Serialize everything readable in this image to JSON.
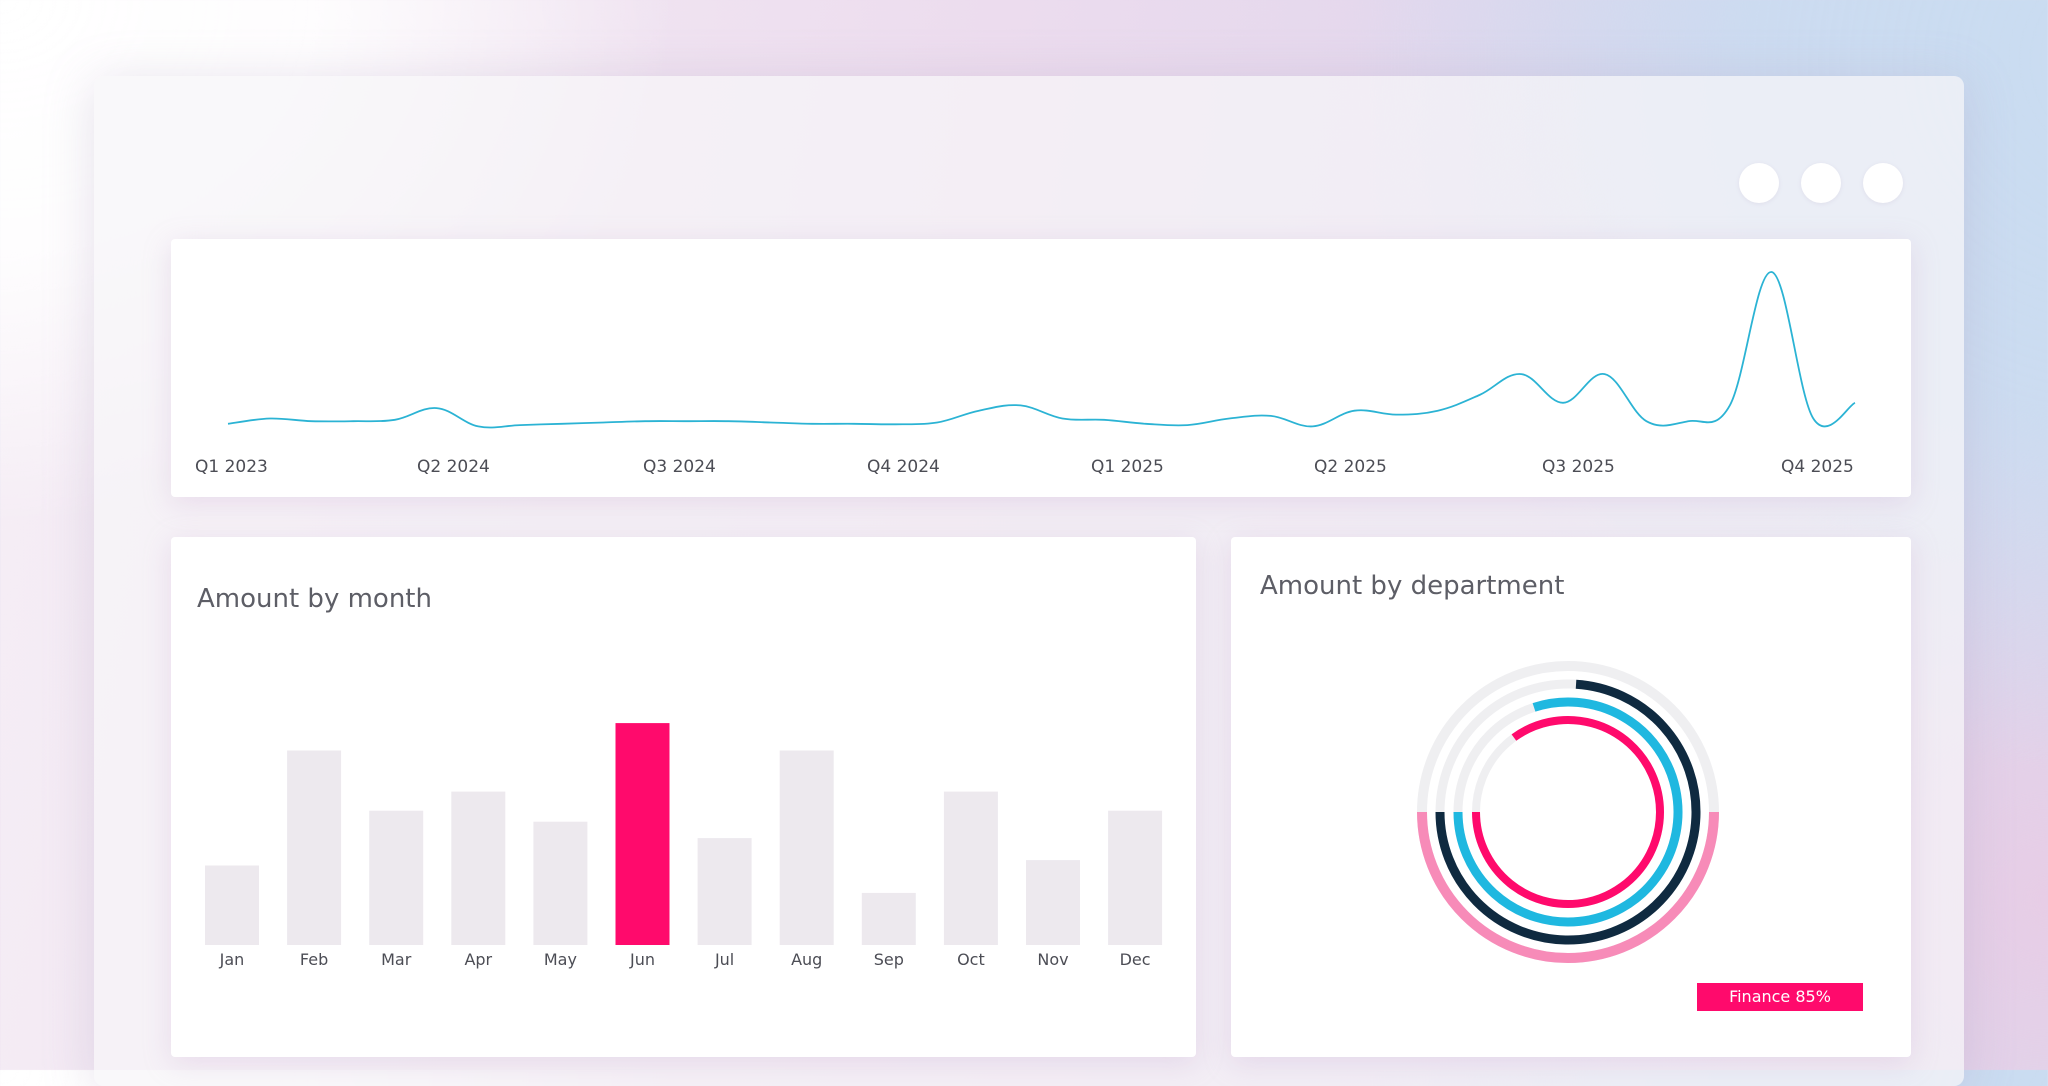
{
  "window": {
    "controls": [
      "window-control-1",
      "window-control-2",
      "window-control-3"
    ]
  },
  "colors": {
    "line": "#2bb3d4",
    "bar_default": "#ede9ee",
    "bar_highlight": "#ff0a6c",
    "ring_track": "#efeff1",
    "ring_navy": "#0f2a40",
    "ring_cyan": "#1fb8e0",
    "ring_pink_light": "#f78bb8",
    "ring_magenta": "#ff0a6c"
  },
  "trend": {
    "tick_labels": [
      "Q1 2023",
      "Q2 2024",
      "Q3 2024",
      "Q4 2024",
      "Q1 2025",
      "Q2 2025",
      "Q3 2025",
      "Q4 2025"
    ]
  },
  "month_chart": {
    "title": "Amount by month"
  },
  "department_chart": {
    "title": "Amount by department",
    "legend_label": "Finance 85%"
  },
  "chart_data": [
    {
      "type": "line",
      "title": "",
      "xlabel": "",
      "ylabel": "",
      "x_tick_labels": [
        "Q1 2023",
        "Q2 2024",
        "Q3 2024",
        "Q4 2024",
        "Q1 2025",
        "Q2 2025",
        "Q3 2025",
        "Q4 2025"
      ],
      "grid": false,
      "legend": "none",
      "series": [
        {
          "values": [
            2,
            4,
            3,
            3,
            3.5,
            8,
            1,
            1.5,
            2,
            2.5,
            3,
            3,
            3,
            2.5,
            2,
            2,
            1.8,
            2.5,
            7,
            9,
            4,
            3.5,
            2,
            1.5,
            4,
            5,
            1,
            7,
            5.5,
            7,
            13,
            21,
            10,
            21,
            3,
            3,
            9,
            60,
            4,
            10
          ]
        }
      ]
    },
    {
      "type": "bar",
      "title": "Amount by month",
      "categories": [
        "Jan",
        "Feb",
        "Mar",
        "Apr",
        "May",
        "Jun",
        "Jul",
        "Aug",
        "Sep",
        "Oct",
        "Nov",
        "Dec"
      ],
      "values": [
        29,
        71,
        49,
        56,
        45,
        81,
        39,
        71,
        19,
        56,
        31,
        49
      ],
      "highlight": "Jun",
      "ylim": [
        0,
        100
      ],
      "xlabel": "",
      "ylabel": "",
      "grid": false
    },
    {
      "type": "pie",
      "subtype": "radial-progress",
      "title": "Amount by department",
      "legend": [
        {
          "label": "Finance 85%"
        }
      ],
      "rings": [
        {
          "value": 0.5,
          "color": "#f78bb8"
        },
        {
          "value": 0.74,
          "color": "#0f2a40"
        },
        {
          "value": 0.8,
          "color": "#1fb8e0"
        },
        {
          "value": 0.85,
          "color": "#ff0a6c"
        }
      ]
    }
  ]
}
